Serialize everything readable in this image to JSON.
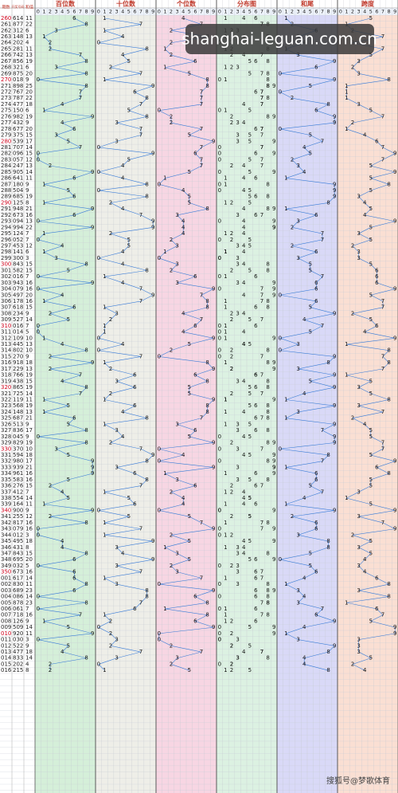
{
  "header": {
    "period": "期数",
    "number": "开奖号码",
    "sum": "和值",
    "zones": [
      "百位数",
      "十位数",
      "个位数",
      "分布图",
      "和尾",
      "跨度"
    ],
    "digits": [
      0,
      1,
      2,
      3,
      4,
      5,
      6,
      7,
      8,
      9
    ]
  },
  "rows": [
    [
      "260",
      "614",
      11,
      [
        6,
        1,
        4
      ],
      1,
      5
    ],
    [
      "261",
      "877",
      22,
      [
        8,
        7,
        7
      ],
      2,
      1
    ],
    [
      "262",
      "312",
      6,
      [
        3,
        1,
        2
      ],
      6,
      2
    ],
    [
      "263",
      "148",
      13,
      [
        1,
        4,
        8
      ],
      3,
      7
    ],
    [
      "264",
      "202",
      4,
      [
        2,
        0,
        2
      ],
      4,
      2
    ],
    [
      "265",
      "281",
      11,
      [
        2,
        8,
        1
      ],
      1,
      7
    ],
    [
      "266",
      "742",
      13,
      [
        7,
        4,
        2
      ],
      3,
      5
    ],
    [
      "267",
      "856",
      19,
      [
        8,
        5,
        6
      ],
      9,
      3
    ],
    [
      "268",
      "321",
      6,
      [
        3,
        2,
        1
      ],
      6,
      2
    ],
    [
      "269",
      "875",
      20,
      [
        8,
        7,
        5
      ],
      0,
      3
    ],
    [
      "270",
      "018",
      9,
      [
        0,
        1,
        8
      ],
      9,
      8
    ],
    [
      "271",
      "898",
      25,
      [
        8,
        9,
        8
      ],
      5,
      1
    ],
    [
      "272",
      "767",
      20,
      [
        7,
        6,
        7
      ],
      0,
      1
    ],
    [
      "273",
      "787",
      22,
      [
        7,
        8,
        7
      ],
      2,
      1
    ],
    [
      "274",
      "477",
      18,
      [
        4,
        7,
        7
      ],
      8,
      3
    ],
    [
      "275",
      "150",
      6,
      [
        1,
        5,
        0
      ],
      6,
      5
    ],
    [
      "276",
      "982",
      19,
      [
        9,
        8,
        2
      ],
      9,
      7
    ],
    [
      "277",
      "432",
      9,
      [
        4,
        3,
        2
      ],
      9,
      2
    ],
    [
      "278",
      "677",
      20,
      [
        6,
        7,
        7
      ],
      0,
      1
    ],
    [
      "279",
      "375",
      15,
      [
        3,
        7,
        5
      ],
      5,
      4
    ],
    [
      "280",
      "539",
      17,
      [
        5,
        3,
        9
      ],
      7,
      6
    ],
    [
      "281",
      "707",
      14,
      [
        7,
        0,
        7
      ],
      4,
      7
    ],
    [
      "282",
      "096",
      15,
      [
        0,
        9,
        6
      ],
      5,
      9
    ],
    [
      "283",
      "057",
      12,
      [
        0,
        5,
        7
      ],
      2,
      7
    ],
    [
      "284",
      "247",
      13,
      [
        2,
        4,
        7
      ],
      3,
      5
    ],
    [
      "285",
      "905",
      14,
      [
        9,
        0,
        5
      ],
      4,
      9
    ],
    [
      "286",
      "641",
      11,
      [
        6,
        4,
        1
      ],
      1,
      5
    ],
    [
      "287",
      "180",
      9,
      [
        1,
        8,
        0
      ],
      9,
      8
    ],
    [
      "288",
      "504",
      9,
      [
        5,
        0,
        4
      ],
      9,
      5
    ],
    [
      "289",
      "685",
      19,
      [
        6,
        8,
        5
      ],
      9,
      3
    ],
    [
      "290",
      "125",
      8,
      [
        1,
        2,
        5
      ],
      8,
      4
    ],
    [
      "291",
      "948",
      21,
      [
        9,
        4,
        8
      ],
      1,
      5
    ],
    [
      "292",
      "673",
      16,
      [
        6,
        7,
        3
      ],
      6,
      4
    ],
    [
      "293",
      "094",
      13,
      [
        0,
        9,
        4
      ],
      3,
      9
    ],
    [
      "294",
      "994",
      22,
      [
        9,
        9,
        4
      ],
      2,
      5
    ],
    [
      "295",
      "124",
      7,
      [
        1,
        2,
        4
      ],
      7,
      3
    ],
    [
      "296",
      "052",
      7,
      [
        0,
        5,
        2
      ],
      7,
      5
    ],
    [
      "297",
      "453",
      12,
      [
        4,
        5,
        3
      ],
      2,
      2
    ],
    [
      "298",
      "141",
      6,
      [
        1,
        4,
        1
      ],
      6,
      3
    ],
    [
      "299",
      "300",
      3,
      [
        3,
        0,
        0
      ],
      3,
      3
    ],
    [
      "300",
      "843",
      15,
      [
        8,
        4,
        3
      ],
      5,
      5
    ],
    [
      "301",
      "582",
      15,
      [
        5,
        8,
        2
      ],
      5,
      6
    ],
    [
      "302",
      "016",
      7,
      [
        0,
        1,
        6
      ],
      7,
      6
    ],
    [
      "303",
      "943",
      16,
      [
        9,
        4,
        3
      ],
      6,
      6
    ],
    [
      "304",
      "079",
      16,
      [
        0,
        7,
        9
      ],
      6,
      9
    ],
    [
      "305",
      "497",
      20,
      [
        4,
        9,
        7
      ],
      0,
      5
    ],
    [
      "306",
      "178",
      16,
      [
        1,
        7,
        8
      ],
      6,
      7
    ],
    [
      "307",
      "618",
      15,
      [
        6,
        1,
        8
      ],
      5,
      7
    ],
    [
      "308",
      "234",
      9,
      [
        2,
        3,
        4
      ],
      9,
      2
    ],
    [
      "309",
      "527",
      14,
      [
        5,
        2,
        7
      ],
      4,
      5
    ],
    [
      "310",
      "016",
      7,
      [
        0,
        1,
        6
      ],
      7,
      6
    ],
    [
      "311",
      "014",
      5,
      [
        0,
        1,
        4
      ],
      5,
      4
    ],
    [
      "312",
      "109",
      10,
      [
        1,
        0,
        9
      ],
      0,
      9
    ],
    [
      "313",
      "445",
      13,
      [
        4,
        4,
        5
      ],
      3,
      1
    ],
    [
      "314",
      "802",
      10,
      [
        8,
        0,
        2
      ],
      0,
      8
    ],
    [
      "315",
      "270",
      9,
      [
        2,
        7,
        0
      ],
      9,
      7
    ],
    [
      "316",
      "918",
      18,
      [
        9,
        1,
        8
      ],
      8,
      8
    ],
    [
      "317",
      "229",
      13,
      [
        2,
        2,
        9
      ],
      3,
      7
    ],
    [
      "318",
      "766",
      19,
      [
        7,
        6,
        6
      ],
      9,
      1
    ],
    [
      "319",
      "438",
      15,
      [
        4,
        3,
        8
      ],
      5,
      5
    ],
    [
      "320",
      "865",
      19,
      [
        8,
        6,
        5
      ],
      9,
      3
    ],
    [
      "321",
      "725",
      14,
      [
        7,
        2,
        5
      ],
      4,
      5
    ],
    [
      "322",
      "119",
      11,
      [
        1,
        1,
        9
      ],
      1,
      8
    ],
    [
      "323",
      "568",
      19,
      [
        5,
        6,
        8
      ],
      9,
      3
    ],
    [
      "324",
      "148",
      13,
      [
        1,
        4,
        8
      ],
      3,
      7
    ],
    [
      "325",
      "687",
      21,
      [
        6,
        8,
        7
      ],
      1,
      2
    ],
    [
      "326",
      "513",
      9,
      [
        5,
        1,
        3
      ],
      9,
      4
    ],
    [
      "327",
      "836",
      17,
      [
        8,
        3,
        6
      ],
      7,
      5
    ],
    [
      "328",
      "045",
      9,
      [
        0,
        4,
        5
      ],
      9,
      5
    ],
    [
      "329",
      "829",
      19,
      [
        8,
        2,
        9
      ],
      9,
      7
    ],
    [
      "330",
      "370",
      10,
      [
        3,
        7,
        0
      ],
      0,
      7
    ],
    [
      "331",
      "594",
      18,
      [
        5,
        9,
        4
      ],
      8,
      5
    ],
    [
      "332",
      "980",
      17,
      [
        9,
        8,
        0
      ],
      7,
      9
    ],
    [
      "333",
      "939",
      21,
      [
        9,
        3,
        9
      ],
      1,
      6
    ],
    [
      "334",
      "961",
      16,
      [
        9,
        6,
        1
      ],
      6,
      8
    ],
    [
      "335",
      "583",
      16,
      [
        5,
        8,
        3
      ],
      6,
      5
    ],
    [
      "336",
      "276",
      15,
      [
        2,
        7,
        6
      ],
      5,
      5
    ],
    [
      "337",
      "412",
      7,
      [
        4,
        1,
        2
      ],
      7,
      3
    ],
    [
      "338",
      "554",
      14,
      [
        5,
        5,
        4
      ],
      4,
      1
    ],
    [
      "339",
      "164",
      11,
      [
        1,
        6,
        4
      ],
      1,
      5
    ],
    [
      "340",
      "900",
      9,
      [
        9,
        0,
        0
      ],
      9,
      9
    ],
    [
      "341",
      "255",
      12,
      [
        2,
        5,
        5
      ],
      2,
      3
    ],
    [
      "342",
      "817",
      16,
      [
        8,
        1,
        7
      ],
      6,
      7
    ],
    [
      "343",
      "079",
      16,
      [
        0,
        7,
        9
      ],
      6,
      9
    ],
    [
      "344",
      "012",
      3,
      [
        0,
        1,
        2
      ],
      3,
      2
    ],
    [
      "345",
      "495",
      18,
      [
        4,
        9,
        5
      ],
      8,
      5
    ],
    [
      "346",
      "431",
      8,
      [
        4,
        3,
        1
      ],
      8,
      3
    ],
    [
      "347",
      "843",
      15,
      [
        8,
        4,
        3
      ],
      5,
      5
    ],
    [
      "348",
      "695",
      20,
      [
        6,
        9,
        5
      ],
      0,
      4
    ],
    [
      "349",
      "032",
      5,
      [
        0,
        3,
        2
      ],
      5,
      3
    ],
    [
      "350",
      "673",
      16,
      [
        6,
        7,
        3
      ],
      6,
      4
    ],
    [
      "001",
      "617",
      14,
      [
        6,
        1,
        7
      ],
      4,
      6
    ],
    [
      "002",
      "830",
      11,
      [
        8,
        3,
        0
      ],
      1,
      8
    ],
    [
      "003",
      "689",
      23,
      [
        6,
        8,
        9
      ],
      3,
      3
    ],
    [
      "004",
      "086",
      14,
      [
        0,
        8,
        6
      ],
      4,
      8
    ],
    [
      "005",
      "878",
      23,
      [
        8,
        7,
        8
      ],
      3,
      1
    ],
    [
      "006",
      "061",
      7,
      [
        0,
        6,
        1
      ],
      7,
      6
    ],
    [
      "007",
      "718",
      16,
      [
        7,
        1,
        8
      ],
      6,
      7
    ],
    [
      "008",
      "126",
      9,
      [
        1,
        2,
        6
      ],
      9,
      5
    ],
    [
      "009",
      "509",
      14,
      [
        5,
        0,
        9
      ],
      4,
      9
    ],
    [
      "010",
      "920",
      11,
      [
        9,
        2,
        0
      ],
      1,
      9
    ],
    [
      "011",
      "030",
      3,
      [
        0,
        3,
        0
      ],
      3,
      3
    ],
    [
      "012",
      "522",
      9,
      [
        5,
        2,
        2
      ],
      9,
      3
    ],
    [
      "013",
      "477",
      18,
      [
        4,
        7,
        7
      ],
      8,
      3
    ],
    [
      "014",
      "833",
      14,
      [
        8,
        3,
        3
      ],
      4,
      5
    ],
    [
      "015",
      "202",
      4,
      [
        2,
        0,
        2
      ],
      4,
      2
    ],
    [
      "016",
      "215",
      8,
      [
        2,
        1,
        5
      ],
      8,
      4
    ]
  ],
  "watermark": "shanghai-leguan.com.cn",
  "footer": "搜狐号@梦歌体育"
}
